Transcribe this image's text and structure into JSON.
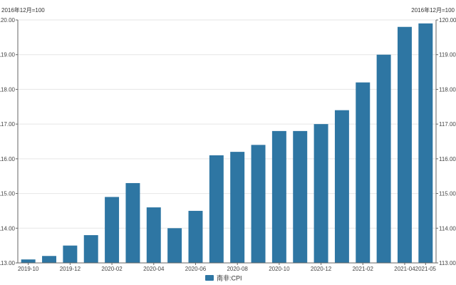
{
  "chart_data": {
    "type": "bar",
    "title": "",
    "xlabel": "",
    "ylabel": "",
    "y_unit_left": "2016年12月=100",
    "y_unit_right": "2016年12月=100",
    "ylim": [
      113.0,
      120.0
    ],
    "y_ticks": [
      "113.00",
      "114.00",
      "115.00",
      "116.00",
      "117.00",
      "118.00",
      "119.00",
      "120.00"
    ],
    "categories": [
      "2019-10",
      "2019-11",
      "2019-12",
      "2020-01",
      "2020-02",
      "2020-03",
      "2020-04",
      "2020-05",
      "2020-06",
      "2020-07",
      "2020-08",
      "2020-09",
      "2020-10",
      "2020-11",
      "2020-12",
      "2021-01",
      "2021-02",
      "2021-03",
      "2021-04",
      "2021-05"
    ],
    "x_tick_labels": [
      "2019-10",
      "",
      "2019-12",
      "",
      "2020-02",
      "",
      "2020-04",
      "",
      "2020-06",
      "",
      "2020-08",
      "",
      "2020-10",
      "",
      "2020-12",
      "",
      "2021-02",
      "",
      "2021-04",
      "2021-05"
    ],
    "series": [
      {
        "name": "南非:CPI",
        "color": "#2e76a3",
        "values": [
          113.1,
          113.2,
          113.5,
          113.8,
          114.9,
          115.3,
          114.6,
          114.0,
          114.5,
          116.1,
          116.2,
          116.4,
          116.8,
          116.8,
          117.0,
          117.4,
          118.2,
          119.0,
          119.8,
          119.9
        ]
      }
    ],
    "grid": true,
    "legend": "bottom-center"
  }
}
